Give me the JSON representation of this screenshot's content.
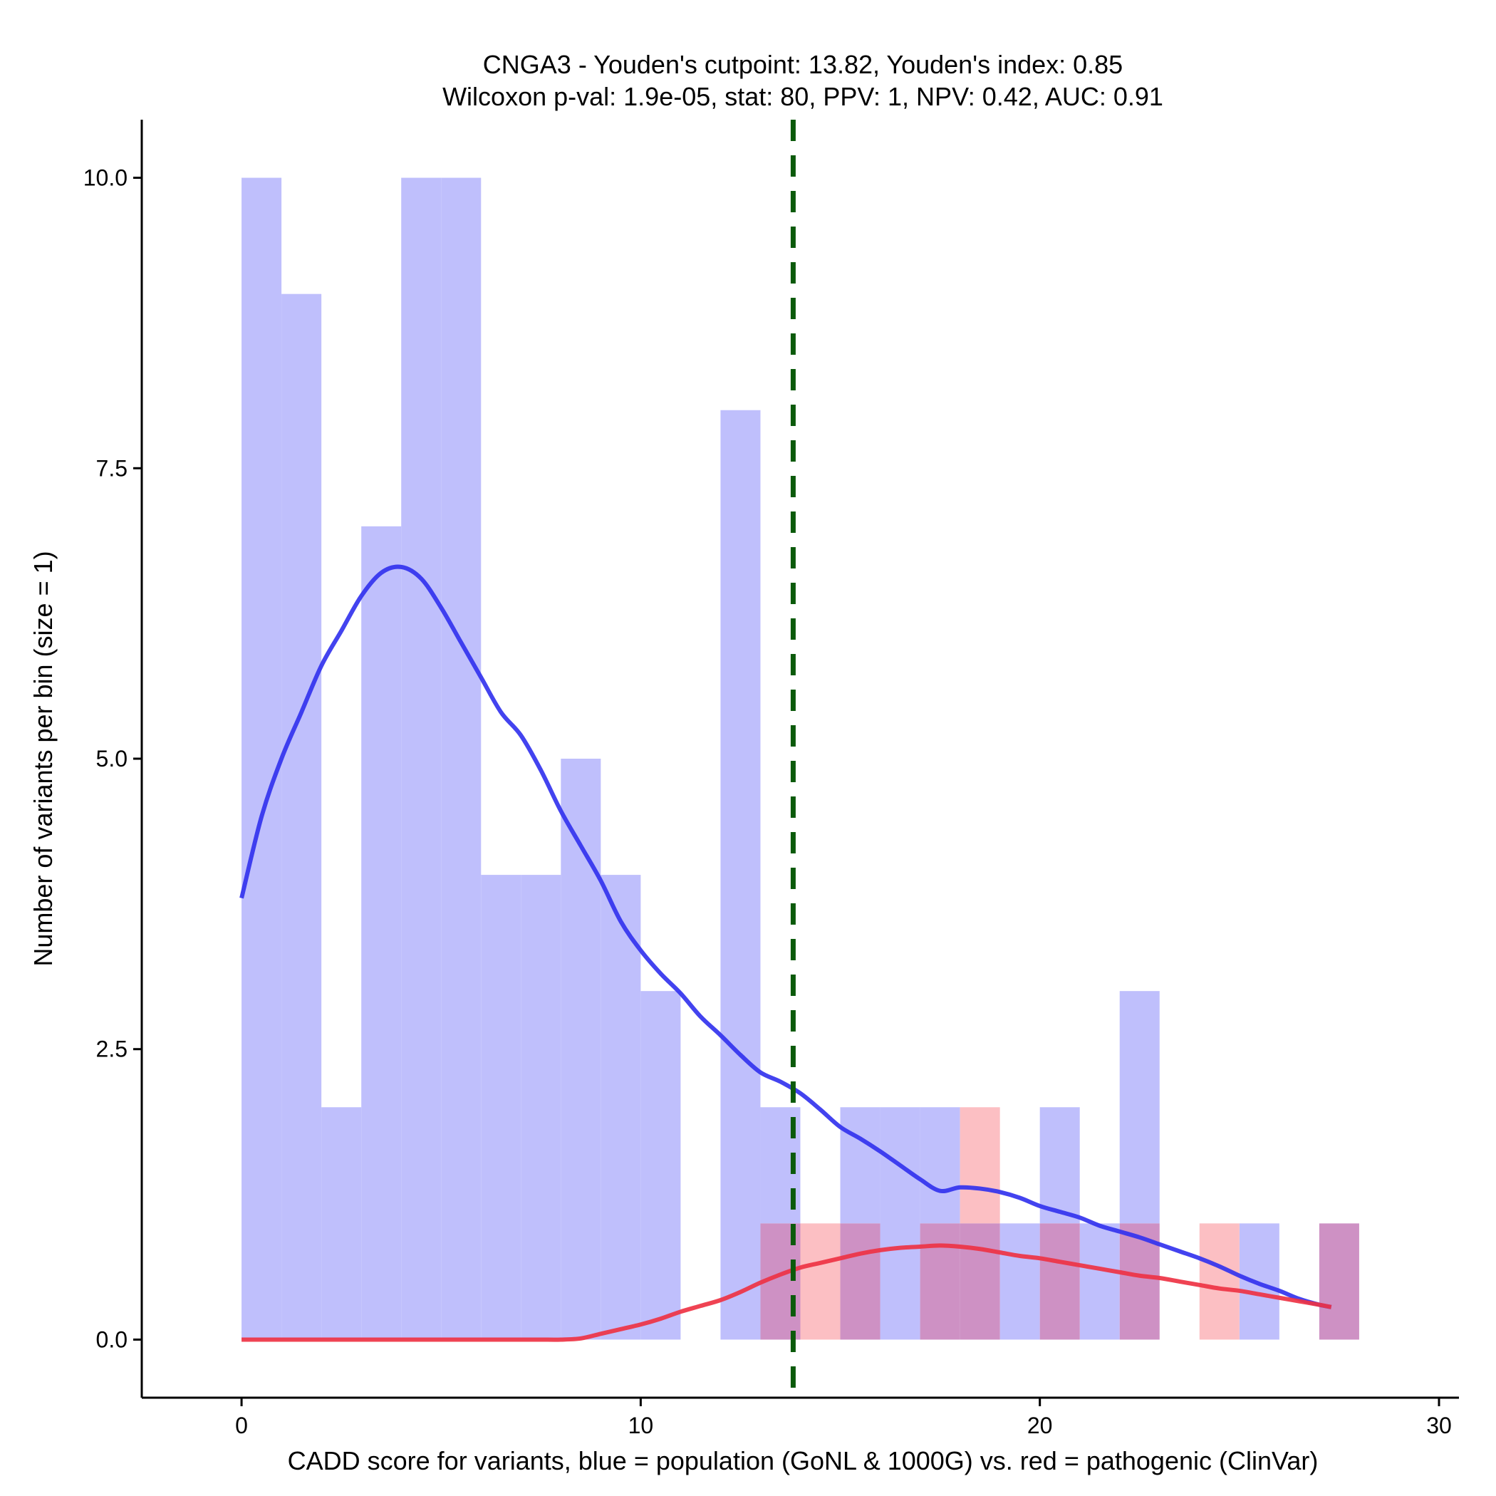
{
  "chart_data": {
    "type": "histogram",
    "title_line1": "CNGA3 - Youden's cutpoint: 13.82, Youden's index: 0.85",
    "title_line2": "Wilcoxon p-val: 1.9e-05, stat: 80, PPV: 1, NPV: 0.42, AUC: 0.91",
    "xlabel": "CADD score for variants, blue = population (GoNL & 1000G) vs. red = pathogenic (ClinVar)",
    "ylabel": "Number of variants per bin (size = 1)",
    "xlim": [
      -2.5,
      30.5
    ],
    "ylim": [
      -0.5,
      10.5
    ],
    "x_ticks": [
      0,
      10,
      20,
      30
    ],
    "x_tick_labels": [
      "0",
      "10",
      "20",
      "30"
    ],
    "y_ticks": [
      0,
      2.5,
      5,
      7.5,
      10
    ],
    "y_tick_labels": [
      "0.0",
      "2.5",
      "5.0",
      "7.5",
      "10.0"
    ],
    "bin_width": 1,
    "cutpoint": 13.82,
    "colors": {
      "population_bar": "#bfbffc",
      "pathogenic_bar": "#fcbfc3",
      "overlap_bar": "#ce91c4",
      "population_curve": "#3333ee",
      "pathogenic_curve": "#ee3344",
      "cutpoint_line": "#0b5a0b"
    },
    "series": [
      {
        "name": "population (GoNL & 1000G)",
        "bin_starts": [
          0,
          1,
          2,
          3,
          4,
          5,
          6,
          7,
          8,
          9,
          10,
          11,
          12,
          13,
          14,
          15,
          16,
          17,
          18,
          19,
          20,
          21,
          22,
          23,
          24,
          25,
          26,
          27
        ],
        "values": [
          10,
          9,
          2,
          7,
          10,
          10,
          4,
          4,
          5,
          4,
          3,
          0,
          8,
          2,
          0,
          2,
          2,
          2,
          1,
          1,
          2,
          1,
          3,
          0,
          0,
          1,
          0,
          1
        ]
      },
      {
        "name": "pathogenic (ClinVar)",
        "bin_starts": [
          0,
          1,
          2,
          3,
          4,
          5,
          6,
          7,
          8,
          9,
          10,
          11,
          12,
          13,
          14,
          15,
          16,
          17,
          18,
          19,
          20,
          21,
          22,
          23,
          24,
          25,
          26,
          27
        ],
        "values": [
          0,
          0,
          0,
          0,
          0,
          0,
          0,
          0,
          0,
          0,
          0,
          0,
          0,
          1,
          1,
          1,
          0,
          1,
          2,
          0,
          1,
          0,
          1,
          0,
          1,
          0,
          0,
          1
        ]
      }
    ],
    "density_curves": [
      {
        "name": "population density",
        "x": [
          0,
          0.5,
          1,
          1.5,
          2,
          2.5,
          3,
          3.5,
          4,
          4.5,
          5,
          5.5,
          6,
          6.5,
          7,
          7.5,
          8,
          8.5,
          9,
          9.5,
          10,
          10.5,
          11,
          11.5,
          12,
          12.5,
          13,
          13.5,
          14,
          14.5,
          15,
          15.5,
          16,
          16.5,
          17,
          17.5,
          18,
          18.5,
          19,
          19.5,
          20,
          20.5,
          21,
          21.5,
          22,
          22.5,
          23,
          23.5,
          24,
          24.5,
          25,
          25.5,
          26,
          26.5,
          27,
          27.3
        ],
        "y": [
          3.8,
          4.5,
          5.0,
          5.4,
          5.8,
          6.1,
          6.4,
          6.6,
          6.65,
          6.55,
          6.3,
          6.0,
          5.7,
          5.4,
          5.2,
          4.9,
          4.55,
          4.25,
          3.95,
          3.6,
          3.35,
          3.15,
          2.98,
          2.78,
          2.62,
          2.45,
          2.3,
          2.22,
          2.12,
          1.98,
          1.83,
          1.73,
          1.62,
          1.5,
          1.38,
          1.28,
          1.31,
          1.3,
          1.27,
          1.22,
          1.15,
          1.1,
          1.05,
          0.98,
          0.93,
          0.88,
          0.82,
          0.76,
          0.7,
          0.63,
          0.55,
          0.48,
          0.42,
          0.35,
          0.3,
          0.28
        ]
      },
      {
        "name": "pathogenic density",
        "x": [
          0,
          0.5,
          1,
          1.5,
          2,
          2.5,
          3,
          3.5,
          4,
          4.5,
          5,
          5.5,
          6,
          6.5,
          7,
          7.5,
          8,
          8.5,
          9,
          9.5,
          10,
          10.5,
          11,
          11.5,
          12,
          12.5,
          13,
          13.5,
          14,
          14.5,
          15,
          15.5,
          16,
          16.5,
          17,
          17.5,
          18,
          18.5,
          19,
          19.5,
          20,
          20.5,
          21,
          21.5,
          22,
          22.5,
          23,
          23.5,
          24,
          24.5,
          25,
          25.5,
          26,
          26.5,
          27,
          27.3
        ],
        "y": [
          0,
          0,
          0,
          0,
          0,
          0,
          0,
          0,
          0,
          0,
          0,
          0,
          0,
          0,
          0,
          0,
          0,
          0.01,
          0.05,
          0.09,
          0.13,
          0.18,
          0.24,
          0.29,
          0.34,
          0.41,
          0.49,
          0.56,
          0.62,
          0.66,
          0.7,
          0.74,
          0.77,
          0.79,
          0.8,
          0.81,
          0.8,
          0.78,
          0.75,
          0.72,
          0.7,
          0.67,
          0.64,
          0.61,
          0.58,
          0.55,
          0.53,
          0.5,
          0.47,
          0.44,
          0.42,
          0.39,
          0.36,
          0.33,
          0.3,
          0.28
        ]
      }
    ]
  }
}
